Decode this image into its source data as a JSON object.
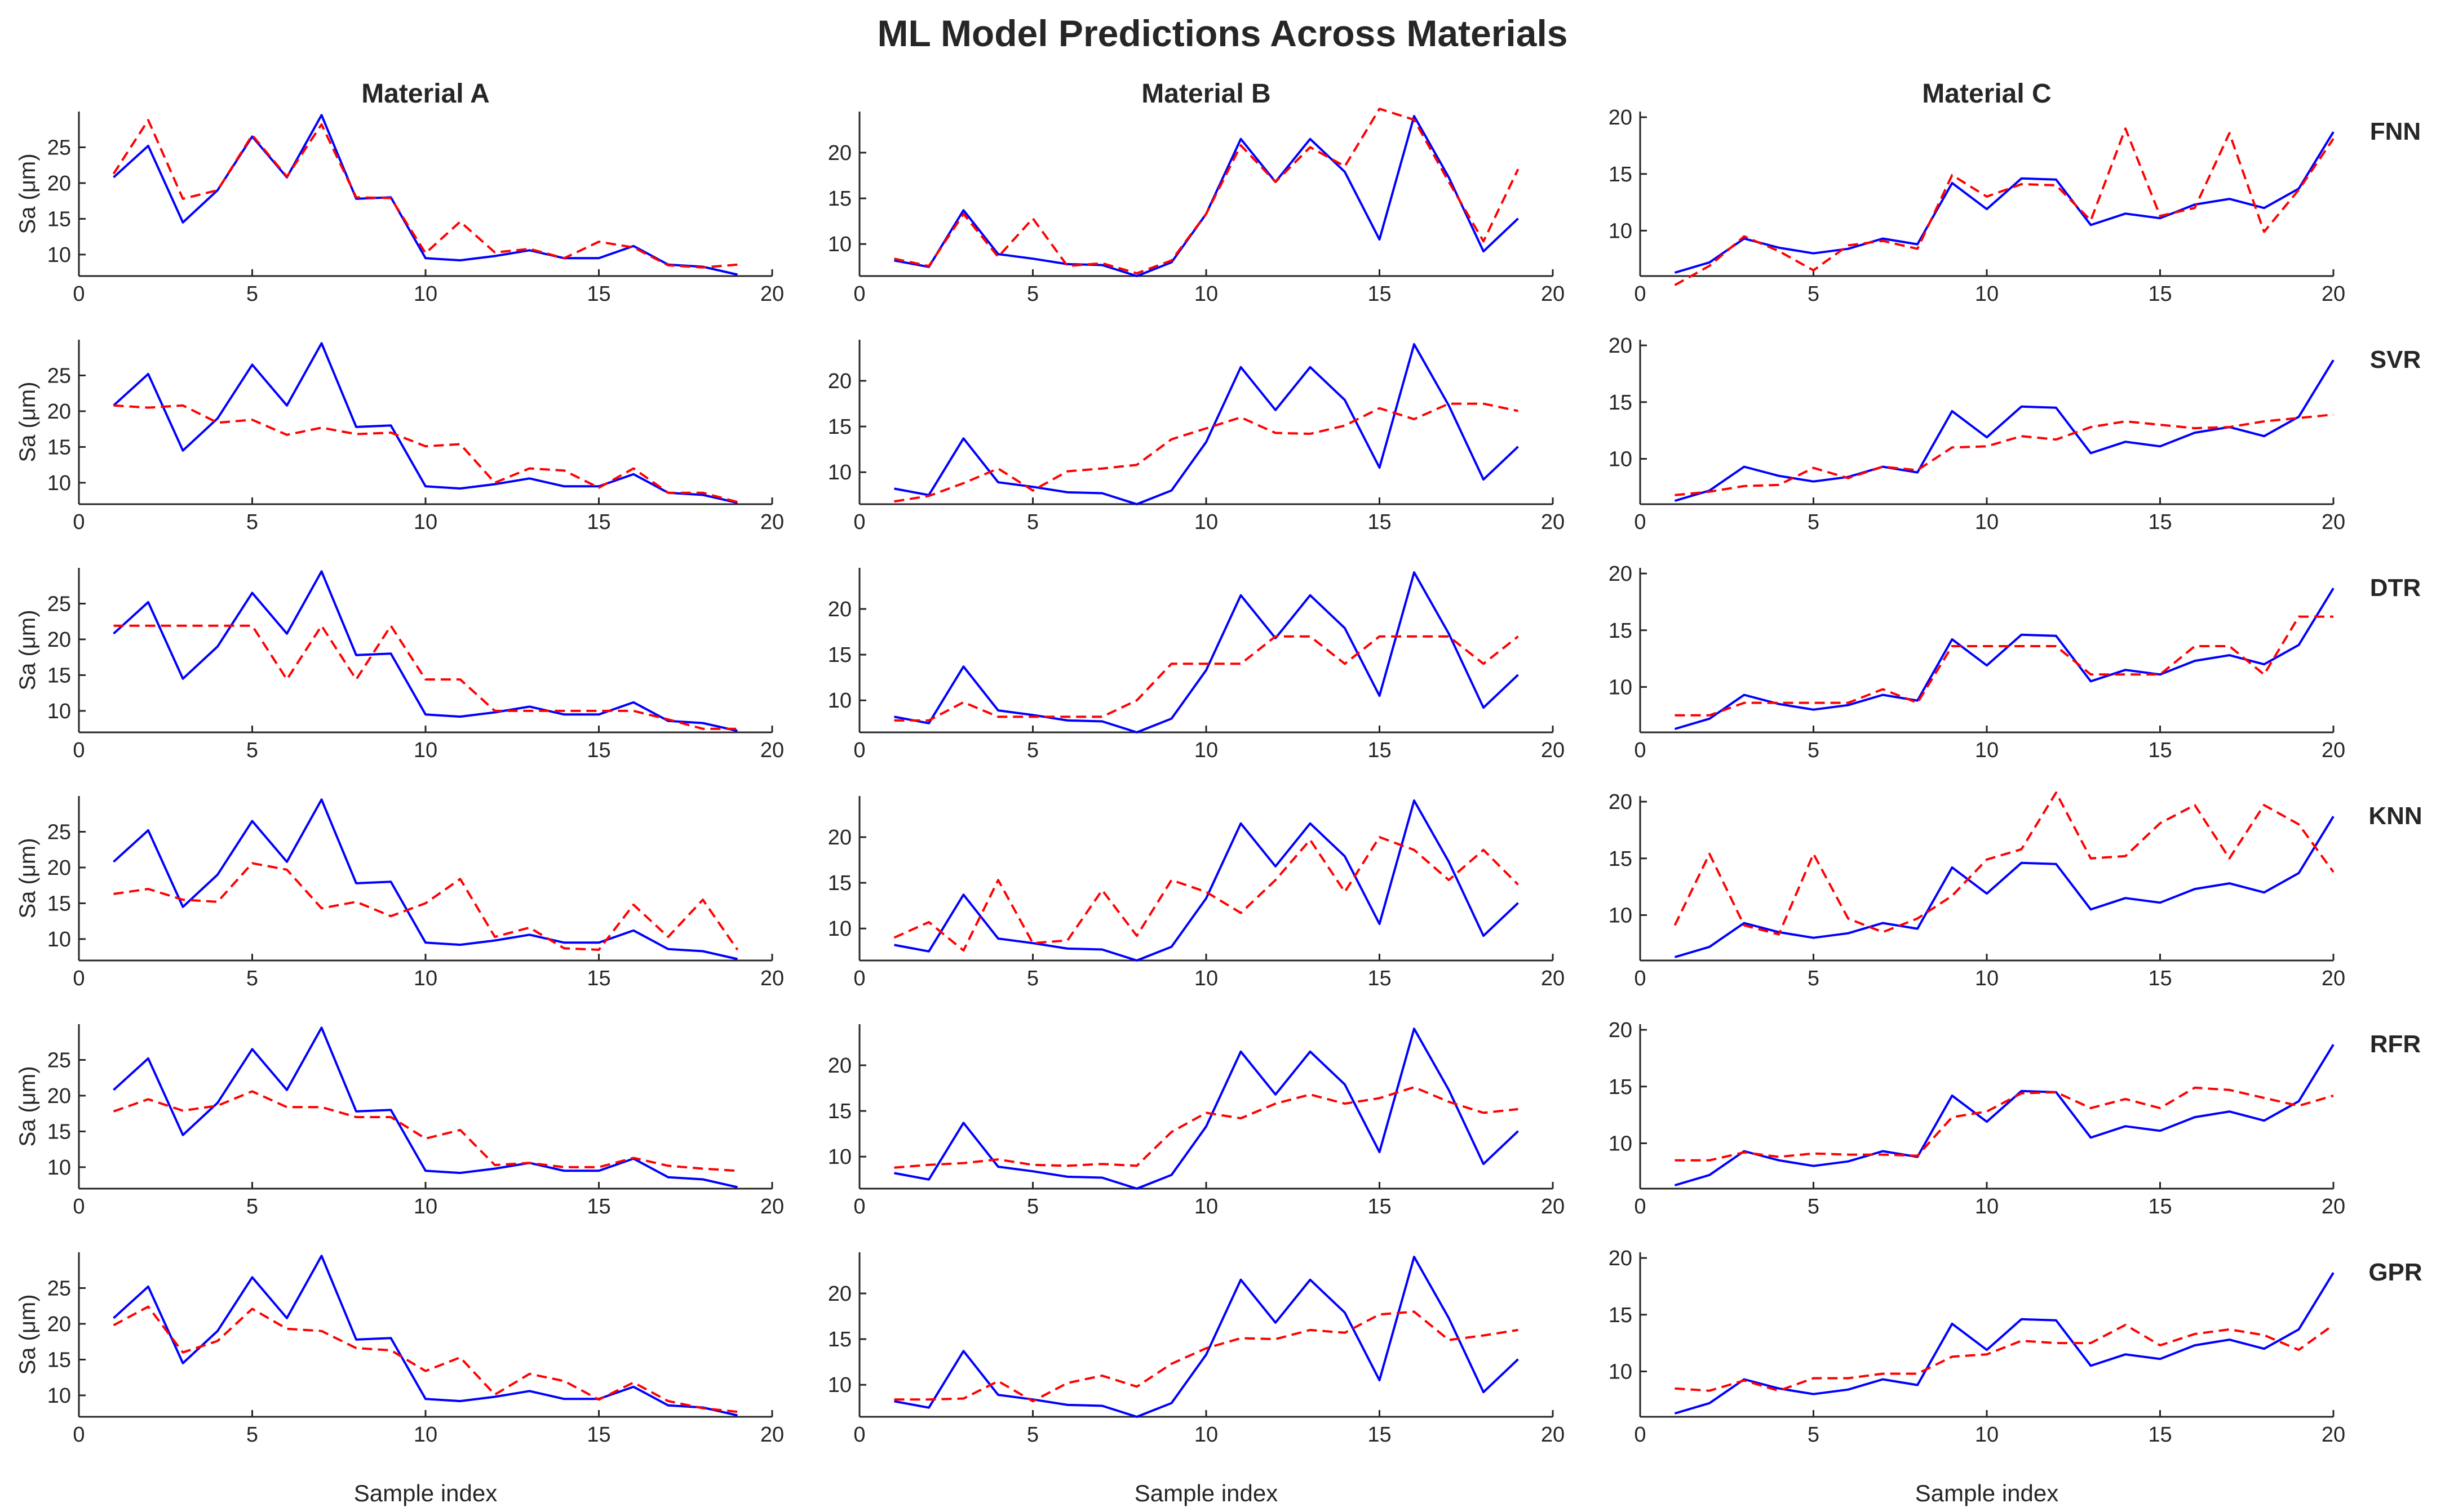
{
  "chart_data": {
    "type": "line",
    "title": "ML Model Predictions Across Materials",
    "xlabel": "Sample index",
    "ylabel": "Sa (μm)",
    "xlim": [
      0,
      20
    ],
    "xticks": [
      0,
      5,
      10,
      15,
      20
    ],
    "series_styles": {
      "actual": {
        "color": "#0000ff",
        "dash": "solid"
      },
      "predicted": {
        "color": "#ff0000",
        "dash": "dashed"
      }
    },
    "materials": [
      {
        "name": "Material A",
        "ylim": [
          7,
          30
        ],
        "yticks": [
          10,
          15,
          20,
          25
        ],
        "x": [
          1,
          2,
          3,
          4,
          5,
          6,
          7,
          8,
          9,
          10,
          11,
          12,
          13,
          14,
          15,
          16,
          17,
          18,
          19
        ],
        "actual": [
          20.8,
          25.2,
          14.5,
          19.0,
          26.5,
          20.8,
          29.5,
          17.8,
          18.0,
          9.5,
          9.2,
          9.8,
          10.6,
          9.5,
          9.5,
          11.2,
          8.6,
          8.3,
          7.2
        ],
        "predicted": {
          "FNN": [
            21.3,
            28.8,
            17.8,
            19.0,
            26.7,
            20.9,
            28.2,
            18.0,
            17.9,
            10.2,
            14.6,
            10.3,
            10.8,
            9.5,
            11.8,
            11.0,
            8.5,
            8.2,
            8.6
          ],
          "SVR": [
            20.8,
            20.5,
            20.8,
            18.4,
            18.8,
            16.7,
            17.7,
            16.8,
            17.0,
            15.1,
            15.4,
            10.0,
            12.0,
            11.7,
            9.3,
            12.0,
            8.6,
            8.6,
            7.3
          ],
          "DTR": [
            21.9,
            21.9,
            21.9,
            21.9,
            21.9,
            14.4,
            21.9,
            14.4,
            21.9,
            14.4,
            14.4,
            10.0,
            10.0,
            10.0,
            10.0,
            10.0,
            8.8,
            7.5,
            7.5
          ],
          "KNN": [
            16.3,
            17.0,
            15.5,
            15.2,
            20.6,
            19.7,
            14.3,
            15.2,
            13.2,
            15.0,
            18.4,
            10.3,
            11.6,
            8.7,
            8.5,
            14.8,
            10.3,
            15.5,
            8.5
          ],
          "RFR": [
            17.8,
            19.5,
            17.9,
            18.6,
            20.6,
            18.4,
            18.4,
            17.0,
            17.0,
            14.0,
            15.2,
            10.3,
            10.6,
            10.0,
            10.0,
            11.3,
            10.2,
            9.8,
            9.5
          ],
          "GPR": [
            19.8,
            22.4,
            16.0,
            17.6,
            22.1,
            19.3,
            19.0,
            16.6,
            16.3,
            13.4,
            15.3,
            10.1,
            13.0,
            12.0,
            9.4,
            11.8,
            9.2,
            8.2,
            7.7
          ]
        }
      },
      {
        "name": "Material B",
        "ylim": [
          6.5,
          24.5
        ],
        "yticks": [
          10,
          15,
          20
        ],
        "x": [
          1,
          2,
          3,
          4,
          5,
          6,
          7,
          8,
          9,
          10,
          11,
          12,
          13,
          14,
          15,
          16,
          17,
          18,
          19
        ],
        "actual": [
          8.2,
          7.5,
          13.7,
          8.9,
          8.4,
          7.8,
          7.7,
          6.5,
          8.0,
          13.3,
          21.5,
          16.8,
          21.5,
          17.9,
          10.5,
          24.0,
          17.3,
          9.2,
          12.8
        ],
        "predicted": {
          "FNN": [
            8.4,
            7.6,
            13.3,
            8.6,
            12.8,
            7.6,
            7.9,
            6.8,
            8.2,
            13.3,
            20.8,
            16.8,
            20.6,
            18.5,
            24.8,
            23.6,
            16.8,
            10.3,
            18.2
          ],
          "SVR": [
            6.8,
            7.4,
            8.8,
            10.4,
            8.0,
            10.1,
            10.4,
            10.8,
            13.6,
            14.8,
            16.0,
            14.3,
            14.2,
            15.1,
            17.0,
            15.8,
            17.5,
            17.5,
            16.7
          ],
          "DTR": [
            7.8,
            7.8,
            9.8,
            8.2,
            8.2,
            8.2,
            8.2,
            10.0,
            14.0,
            14.0,
            14.0,
            17.0,
            17.0,
            14.0,
            17.0,
            17.0,
            17.0,
            14.0,
            17.0
          ],
          "KNN": [
            9.0,
            10.7,
            7.6,
            15.3,
            8.4,
            8.7,
            14.2,
            9.2,
            15.3,
            14.0,
            11.7,
            15.3,
            19.7,
            14.0,
            20.0,
            18.6,
            15.3,
            18.6,
            14.8
          ],
          "RFR": [
            8.8,
            9.1,
            9.3,
            9.7,
            9.1,
            9.0,
            9.2,
            9.0,
            12.7,
            14.8,
            14.2,
            15.8,
            16.8,
            15.8,
            16.4,
            17.6,
            16.0,
            14.8,
            15.2
          ],
          "GPR": [
            8.4,
            8.4,
            8.5,
            10.4,
            8.2,
            10.2,
            11.0,
            9.8,
            12.3,
            14.0,
            15.1,
            15.0,
            16.0,
            15.7,
            17.7,
            18.0,
            14.9,
            15.4,
            16.0
          ]
        }
      },
      {
        "name": "Material C",
        "ylim": [
          6,
          20.5
        ],
        "yticks": [
          10,
          15,
          20
        ],
        "x": [
          1,
          2,
          3,
          4,
          5,
          6,
          7,
          8,
          9,
          10,
          11,
          12,
          13,
          14,
          15,
          16,
          17,
          18,
          19,
          20
        ],
        "actual": [
          6.3,
          7.2,
          9.3,
          8.5,
          8.0,
          8.4,
          9.3,
          8.8,
          14.2,
          11.9,
          14.6,
          14.5,
          10.5,
          11.5,
          11.1,
          12.3,
          12.8,
          12.0,
          13.7,
          18.7
        ],
        "predicted": {
          "FNN": [
            5.2,
            6.9,
            9.5,
            8.2,
            6.5,
            8.7,
            9.1,
            8.4,
            14.9,
            13.0,
            14.1,
            14.0,
            10.9,
            19.0,
            11.3,
            12.0,
            18.6,
            9.9,
            13.6,
            18.1
          ],
          "SVR": [
            6.8,
            7.1,
            7.6,
            7.7,
            9.2,
            8.3,
            9.3,
            9.0,
            11.0,
            11.1,
            12.0,
            11.7,
            12.8,
            13.3,
            13.0,
            12.7,
            12.8,
            13.3,
            13.6,
            13.9
          ],
          "DTR": [
            7.5,
            7.5,
            8.6,
            8.6,
            8.6,
            8.6,
            9.8,
            8.6,
            13.6,
            13.6,
            13.6,
            13.6,
            11.1,
            11.1,
            11.1,
            13.6,
            13.6,
            11.1,
            16.2,
            16.2
          ],
          "KNN": [
            9.1,
            15.4,
            9.1,
            8.3,
            15.4,
            9.7,
            8.5,
            9.7,
            11.7,
            14.9,
            15.8,
            20.8,
            15.0,
            15.2,
            18.1,
            19.7,
            15.0,
            19.7,
            18.0,
            13.8
          ],
          "RFR": [
            8.5,
            8.5,
            9.2,
            8.8,
            9.1,
            9.0,
            9.0,
            8.9,
            12.3,
            12.8,
            14.4,
            14.5,
            13.1,
            13.9,
            13.1,
            14.9,
            14.7,
            14.0,
            13.3,
            14.2
          ],
          "GPR": [
            8.5,
            8.3,
            9.2,
            8.3,
            9.4,
            9.4,
            9.8,
            9.8,
            11.3,
            11.5,
            12.7,
            12.5,
            12.5,
            14.1,
            12.3,
            13.3,
            13.7,
            13.2,
            11.9,
            14.1
          ]
        }
      }
    ],
    "models": [
      "FNN",
      "SVR",
      "DTR",
      "KNN",
      "RFR",
      "GPR"
    ]
  }
}
